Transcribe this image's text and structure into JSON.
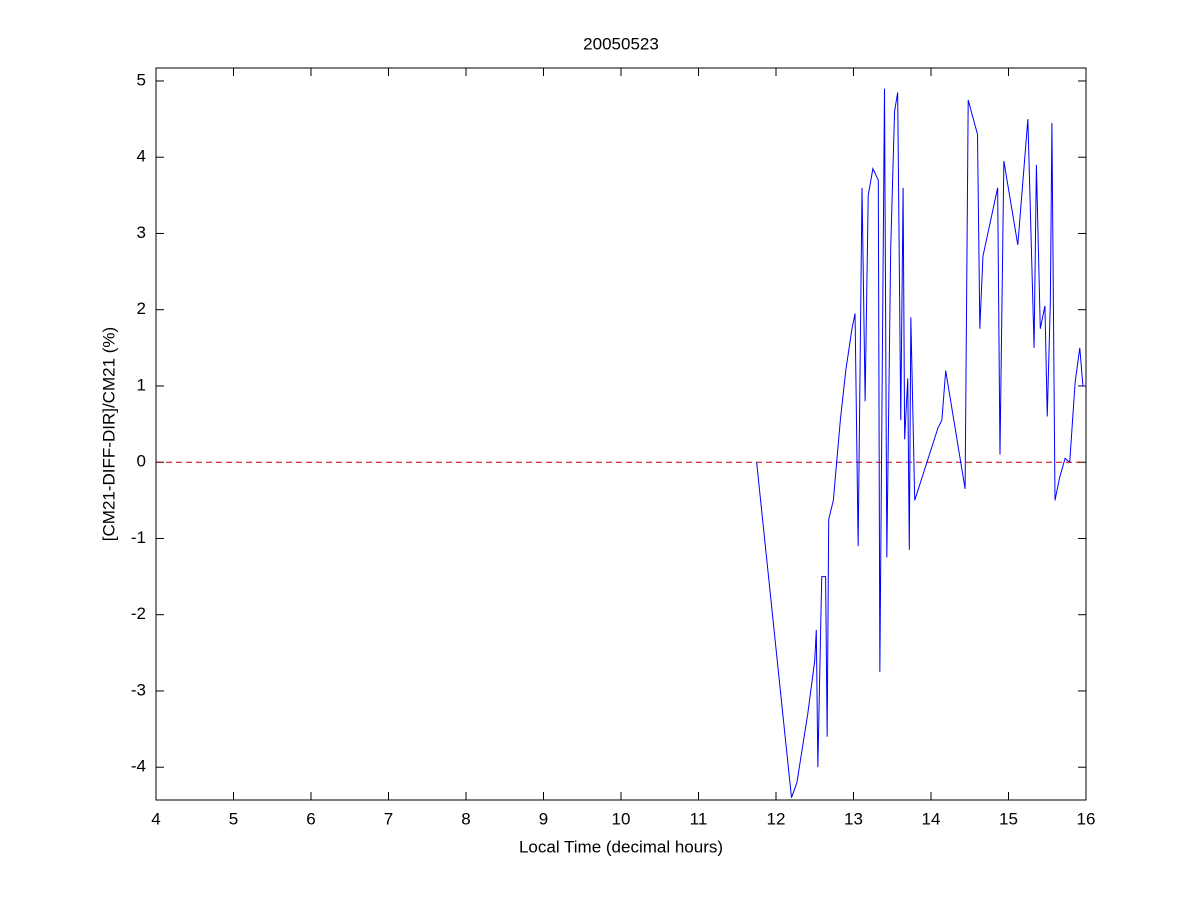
{
  "chart_data": {
    "type": "line",
    "title": "20050523",
    "xlabel": "Local Time (decimal hours)",
    "ylabel": "[CM21-DIFF-DIR]/CM21 (%)",
    "xlim": [
      4,
      16
    ],
    "ylim": [
      -4.43,
      5.17
    ],
    "xticks": [
      4,
      5,
      6,
      7,
      8,
      9,
      10,
      11,
      12,
      13,
      14,
      15,
      16
    ],
    "yticks": [
      -4,
      -3,
      -2,
      -1,
      0,
      1,
      2,
      3,
      4,
      5
    ],
    "reference_line": {
      "value": 0,
      "color": "#cc0000",
      "style": "dashed"
    },
    "series": [
      {
        "color": "#0000ff",
        "x": [
          11.75,
          12.2,
          12.27,
          12.41,
          12.5,
          12.52,
          12.54,
          12.59,
          12.64,
          12.66,
          12.68,
          12.74,
          12.83,
          12.9,
          12.98,
          13.02,
          13.06,
          13.11,
          13.15,
          13.19,
          13.25,
          13.32,
          13.34,
          13.4,
          13.43,
          13.48,
          13.53,
          13.57,
          13.61,
          13.64,
          13.66,
          13.7,
          13.72,
          13.74,
          13.79,
          14.09,
          14.14,
          14.19,
          14.44,
          14.48,
          14.6,
          14.63,
          14.67,
          14.86,
          14.89,
          14.94,
          15.12,
          15.25,
          15.33,
          15.36,
          15.41,
          15.47,
          15.5,
          15.54,
          15.56,
          15.6,
          15.66,
          15.73,
          15.79,
          15.86,
          15.92,
          15.96,
          16
        ],
        "values": [
          0,
          -4.4,
          -4.2,
          -3.3,
          -2.6,
          -2.2,
          -4.0,
          -1.5,
          -1.5,
          -3.6,
          -0.75,
          -0.5,
          0.55,
          1.2,
          1.75,
          1.95,
          -1.1,
          3.6,
          0.8,
          3.5,
          3.85,
          3.7,
          -2.75,
          4.9,
          -1.25,
          2.8,
          4.6,
          4.85,
          0.55,
          3.6,
          0.3,
          1.1,
          -1.15,
          1.9,
          -0.5,
          0.45,
          0.55,
          1.2,
          -0.35,
          4.75,
          4.3,
          1.75,
          2.7,
          3.6,
          0.1,
          3.95,
          2.85,
          4.5,
          1.5,
          3.9,
          1.75,
          2.05,
          0.6,
          2.1,
          4.45,
          -0.5,
          -0.2,
          0.05,
          0,
          1.05,
          1.5,
          1.0,
          1.0
        ]
      }
    ]
  }
}
